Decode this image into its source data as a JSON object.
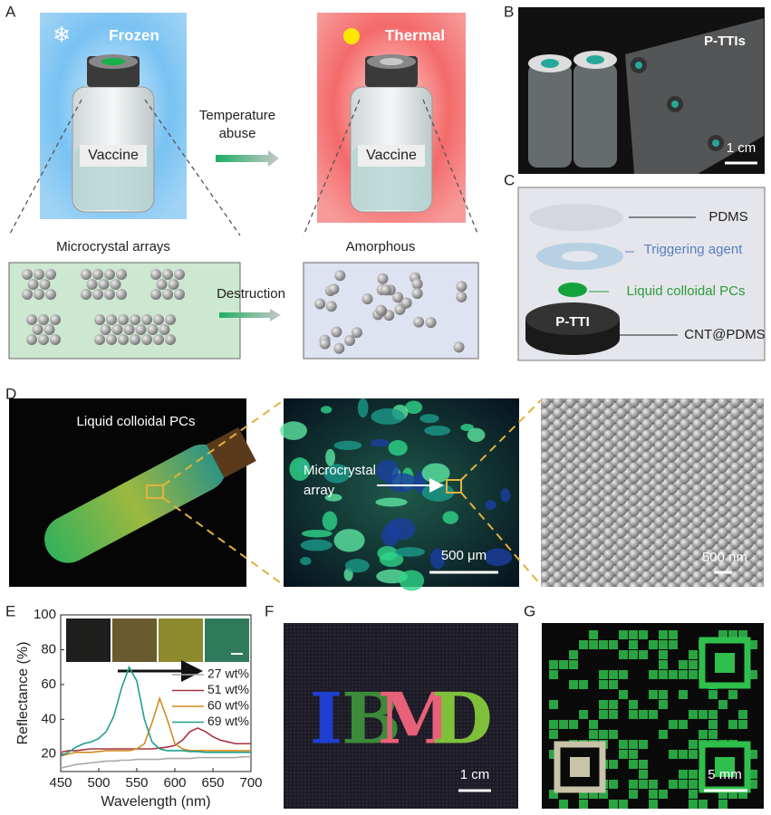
{
  "panel_labels": [
    "A",
    "B",
    "C",
    "D",
    "E",
    "F",
    "G"
  ],
  "panel_a": {
    "frozen": "Frozen",
    "thermal": "Thermal",
    "vaccine": [
      "Vaccine",
      "Vaccine"
    ],
    "temperature_abuse": [
      "Temperature",
      "abuse"
    ],
    "microcrystal_arrays": "Microcrystal arrays",
    "amorphous": "Amorphous",
    "destruction": "Destruction"
  },
  "panel_b": {
    "label": "P-TTIs",
    "scale": "1 cm"
  },
  "panel_c": {
    "pdms": "PDMS",
    "triggering_agent": "Triggering agent",
    "liquid_pcs": "Liquid colloidal PCs",
    "p_tti": "P-TTI",
    "cnt_pdms": "CNT@PDMS"
  },
  "panel_d": {
    "liquid_pcs": "Liquid colloidal PCs",
    "microcrystal_array": [
      "Microcrystal",
      "array"
    ],
    "scale_1": "500 μm",
    "scale_2": "500 nm"
  },
  "panel_f": {
    "letters": [
      "I",
      "B",
      "M",
      "D"
    ],
    "scale": "1 cm"
  },
  "panel_g": {
    "scale": "5 mm"
  },
  "chart_data": {
    "type": "line",
    "xlabel": "Wavelength (nm)",
    "ylabel": "Reflectance (%)",
    "x": [
      450,
      460,
      470,
      480,
      490,
      500,
      510,
      520,
      530,
      540,
      550,
      560,
      570,
      580,
      590,
      600,
      610,
      620,
      630,
      640,
      650,
      660,
      670,
      680,
      690,
      700
    ],
    "series": [
      {
        "name": "27 wt%",
        "color": "#a8a8a8",
        "values": [
          12,
          13,
          14,
          14.5,
          15,
          15.5,
          16,
          16,
          16.5,
          16.5,
          17,
          17,
          17,
          17,
          17.5,
          17.5,
          17.5,
          17.5,
          18,
          18,
          18,
          18,
          18,
          18,
          18.5,
          18.5
        ]
      },
      {
        "name": "51 wt%",
        "color": "#a8323e",
        "values": [
          21,
          22,
          22,
          22.5,
          23,
          23,
          23,
          23,
          23,
          23,
          23,
          23,
          23,
          23.5,
          24,
          25,
          28,
          33,
          35,
          33,
          30,
          28,
          27,
          26,
          26,
          26
        ]
      },
      {
        "name": "60 wt%",
        "color": "#d18a1e",
        "values": [
          19,
          20,
          21,
          21,
          21,
          21.5,
          22,
          22,
          22,
          22,
          23,
          26,
          38,
          52,
          40,
          26,
          23,
          22,
          22,
          22,
          22,
          22,
          22,
          22,
          22,
          22
        ]
      },
      {
        "name": "69 wt%",
        "color": "#1fa08e",
        "values": [
          19,
          21,
          24,
          26,
          27,
          29,
          33,
          42,
          58,
          70,
          62,
          40,
          27,
          23,
          22,
          22,
          22,
          21.5,
          21.5,
          21,
          21,
          21,
          21,
          21,
          21,
          21
        ]
      }
    ],
    "xlim": [
      450,
      700
    ],
    "xticks": [
      450,
      500,
      550,
      600,
      650,
      700
    ],
    "ylim": [
      10,
      100
    ],
    "yticks": [
      20,
      40,
      60,
      80,
      100
    ]
  }
}
